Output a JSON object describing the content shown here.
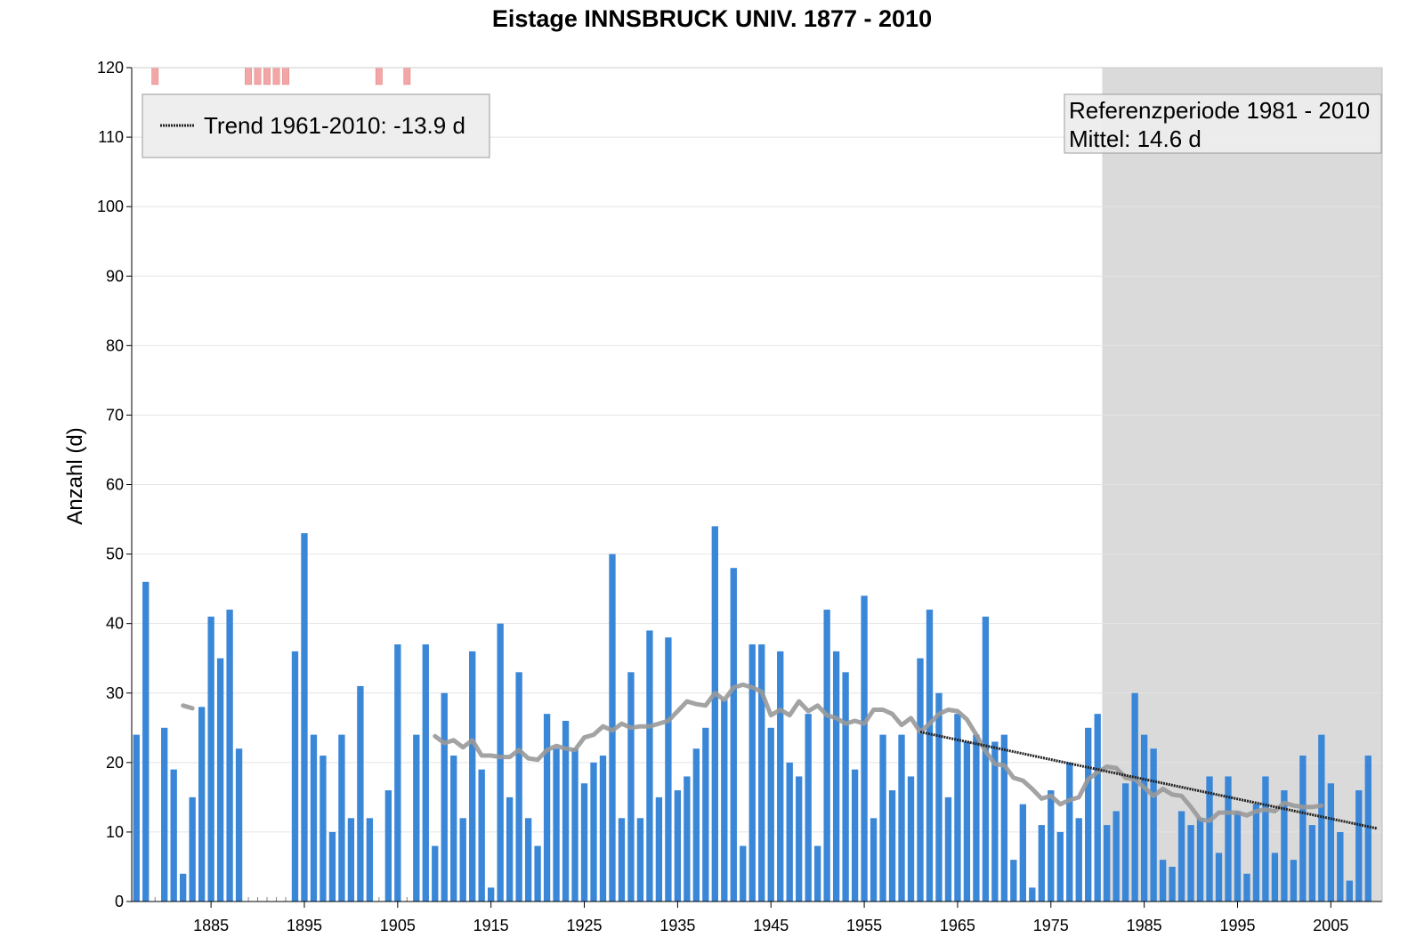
{
  "chart_data": {
    "type": "bar",
    "title": "Eistage INNSBRUCK UNIV. 1877 - 2010",
    "ylabel": "Anzahl (d)",
    "xlabel": "",
    "ylim": [
      0,
      120
    ],
    "xlim": [
      1876.5,
      2010.5
    ],
    "yticks": [
      "0",
      "10",
      "20",
      "30",
      "40",
      "50",
      "60",
      "70",
      "80",
      "90",
      "100",
      "110",
      "120"
    ],
    "xticks": [
      "1885",
      "1895",
      "1905",
      "1915",
      "1925",
      "1935",
      "1945",
      "1955",
      "1965",
      "1975",
      "1985",
      "1995",
      "2005"
    ],
    "grid": true,
    "bar_color": "#3a87d8",
    "bars": [
      [
        1877,
        24
      ],
      [
        1878,
        46
      ],
      [
        1880,
        25
      ],
      [
        1881,
        19
      ],
      [
        1882,
        4
      ],
      [
        1883,
        15
      ],
      [
        1884,
        28
      ],
      [
        1885,
        41
      ],
      [
        1886,
        35
      ],
      [
        1887,
        42
      ],
      [
        1888,
        22
      ],
      [
        1894,
        36
      ],
      [
        1895,
        53
      ],
      [
        1896,
        24
      ],
      [
        1897,
        21
      ],
      [
        1898,
        10
      ],
      [
        1899,
        24
      ],
      [
        1900,
        12
      ],
      [
        1901,
        31
      ],
      [
        1902,
        12
      ],
      [
        1904,
        16
      ],
      [
        1905,
        37
      ],
      [
        1907,
        24
      ],
      [
        1908,
        37
      ],
      [
        1909,
        8
      ],
      [
        1910,
        30
      ],
      [
        1911,
        21
      ],
      [
        1912,
        12
      ],
      [
        1913,
        36
      ],
      [
        1914,
        19
      ],
      [
        1915,
        2
      ],
      [
        1916,
        40
      ],
      [
        1917,
        15
      ],
      [
        1918,
        33
      ],
      [
        1919,
        12
      ],
      [
        1920,
        8
      ],
      [
        1921,
        27
      ],
      [
        1922,
        22
      ],
      [
        1923,
        26
      ],
      [
        1924,
        22
      ],
      [
        1925,
        17
      ],
      [
        1926,
        20
      ],
      [
        1927,
        21
      ],
      [
        1928,
        50
      ],
      [
        1929,
        12
      ],
      [
        1930,
        33
      ],
      [
        1931,
        12
      ],
      [
        1932,
        39
      ],
      [
        1933,
        15
      ],
      [
        1934,
        38
      ],
      [
        1935,
        16
      ],
      [
        1936,
        18
      ],
      [
        1937,
        22
      ],
      [
        1938,
        25
      ],
      [
        1939,
        54
      ],
      [
        1940,
        29
      ],
      [
        1941,
        48
      ],
      [
        1942,
        8
      ],
      [
        1943,
        37
      ],
      [
        1944,
        37
      ],
      [
        1945,
        25
      ],
      [
        1946,
        36
      ],
      [
        1947,
        20
      ],
      [
        1948,
        18
      ],
      [
        1949,
        27
      ],
      [
        1950,
        8
      ],
      [
        1951,
        42
      ],
      [
        1952,
        36
      ],
      [
        1953,
        33
      ],
      [
        1954,
        19
      ],
      [
        1955,
        44
      ],
      [
        1956,
        12
      ],
      [
        1957,
        24
      ],
      [
        1958,
        16
      ],
      [
        1959,
        24
      ],
      [
        1960,
        18
      ],
      [
        1961,
        35
      ],
      [
        1962,
        42
      ],
      [
        1963,
        30
      ],
      [
        1964,
        15
      ],
      [
        1965,
        27
      ],
      [
        1966,
        23
      ],
      [
        1967,
        24
      ],
      [
        1968,
        41
      ],
      [
        1969,
        23
      ],
      [
        1970,
        24
      ],
      [
        1971,
        6
      ],
      [
        1972,
        14
      ],
      [
        1973,
        2
      ],
      [
        1974,
        11
      ],
      [
        1975,
        16
      ],
      [
        1976,
        10
      ],
      [
        1977,
        20
      ],
      [
        1978,
        12
      ],
      [
        1979,
        25
      ],
      [
        1980,
        27
      ],
      [
        1981,
        11
      ],
      [
        1982,
        13
      ],
      [
        1983,
        17
      ],
      [
        1984,
        30
      ],
      [
        1985,
        24
      ],
      [
        1986,
        22
      ],
      [
        1987,
        6
      ],
      [
        1988,
        5
      ],
      [
        1989,
        13
      ],
      [
        1990,
        11
      ],
      [
        1991,
        12
      ],
      [
        1992,
        18
      ],
      [
        1993,
        7
      ],
      [
        1994,
        18
      ],
      [
        1995,
        13
      ],
      [
        1996,
        4
      ],
      [
        1997,
        14
      ],
      [
        1998,
        18
      ],
      [
        1999,
        7
      ],
      [
        2000,
        16
      ],
      [
        2001,
        6
      ],
      [
        2002,
        21
      ],
      [
        2003,
        11
      ],
      [
        2004,
        24
      ],
      [
        2005,
        17
      ],
      [
        2006,
        10
      ],
      [
        2007,
        3
      ],
      [
        2008,
        16
      ],
      [
        2009,
        21
      ]
    ],
    "missing_years": [
      1879,
      1889,
      1890,
      1891,
      1892,
      1893,
      1903,
      1906
    ],
    "missing_marker_color": "#f4a6a6",
    "smooth_line": {
      "color": "#999999",
      "points": [
        [
          1882,
          28.2
        ],
        [
          1883,
          27.8
        ],
        [
          1909,
          23.8
        ],
        [
          1910,
          22.8
        ],
        [
          1911,
          23.2
        ],
        [
          1912,
          22.2
        ],
        [
          1913,
          23.2
        ],
        [
          1914,
          21.0
        ],
        [
          1915,
          21.0
        ],
        [
          1916,
          20.8
        ],
        [
          1917,
          20.8
        ],
        [
          1918,
          21.8
        ],
        [
          1919,
          20.6
        ],
        [
          1920,
          20.4
        ],
        [
          1921,
          21.8
        ],
        [
          1922,
          22.4
        ],
        [
          1923,
          22.0
        ],
        [
          1924,
          21.8
        ],
        [
          1925,
          23.6
        ],
        [
          1926,
          24.0
        ],
        [
          1927,
          25.2
        ],
        [
          1928,
          24.6
        ],
        [
          1929,
          25.6
        ],
        [
          1930,
          25.0
        ],
        [
          1931,
          25.2
        ],
        [
          1932,
          25.2
        ],
        [
          1933,
          25.6
        ],
        [
          1934,
          26.0
        ],
        [
          1935,
          27.4
        ],
        [
          1936,
          28.8
        ],
        [
          1937,
          28.4
        ],
        [
          1938,
          28.2
        ],
        [
          1939,
          30.0
        ],
        [
          1940,
          29.0
        ],
        [
          1941,
          30.8
        ],
        [
          1942,
          31.2
        ],
        [
          1943,
          30.8
        ],
        [
          1944,
          30.2
        ],
        [
          1945,
          26.8
        ],
        [
          1946,
          27.6
        ],
        [
          1947,
          26.8
        ],
        [
          1948,
          28.8
        ],
        [
          1949,
          27.4
        ],
        [
          1950,
          28.2
        ],
        [
          1951,
          26.8
        ],
        [
          1952,
          26.4
        ],
        [
          1953,
          25.6
        ],
        [
          1954,
          26.0
        ],
        [
          1955,
          25.6
        ],
        [
          1956,
          27.6
        ],
        [
          1957,
          27.6
        ],
        [
          1958,
          27.0
        ],
        [
          1959,
          25.4
        ],
        [
          1960,
          26.4
        ],
        [
          1961,
          24.4
        ],
        [
          1962,
          25.6
        ],
        [
          1963,
          27.0
        ],
        [
          1964,
          27.6
        ],
        [
          1965,
          27.4
        ],
        [
          1966,
          26.2
        ],
        [
          1967,
          24.0
        ],
        [
          1968,
          21.6
        ],
        [
          1969,
          19.8
        ],
        [
          1970,
          19.6
        ],
        [
          1971,
          17.8
        ],
        [
          1972,
          17.4
        ],
        [
          1973,
          16.2
        ],
        [
          1974,
          14.8
        ],
        [
          1975,
          15.2
        ],
        [
          1976,
          14.0
        ],
        [
          1977,
          14.6
        ],
        [
          1978,
          15.0
        ],
        [
          1979,
          17.6
        ],
        [
          1980,
          18.6
        ],
        [
          1981,
          19.4
        ],
        [
          1982,
          19.2
        ],
        [
          1983,
          17.8
        ],
        [
          1984,
          17.6
        ],
        [
          1985,
          16.4
        ],
        [
          1986,
          15.2
        ],
        [
          1987,
          16.2
        ],
        [
          1988,
          15.4
        ],
        [
          1989,
          15.2
        ],
        [
          1990,
          13.6
        ],
        [
          1991,
          11.8
        ],
        [
          1992,
          11.6
        ],
        [
          1993,
          12.8
        ],
        [
          1994,
          12.8
        ],
        [
          1995,
          12.8
        ],
        [
          1996,
          12.4
        ],
        [
          1997,
          13.0
        ],
        [
          1998,
          13.2
        ],
        [
          1999,
          13.0
        ],
        [
          2000,
          14.2
        ],
        [
          2001,
          13.8
        ],
        [
          2002,
          13.6
        ],
        [
          2003,
          13.6
        ],
        [
          2004,
          13.8
        ]
      ]
    },
    "trend": {
      "label": "Trend 1961-2010: -13.9 d",
      "from": [
        1961,
        24.4
      ],
      "to": [
        2010,
        10.5
      ]
    },
    "reference_period": {
      "label_line1": "Referenzperiode 1981 - 2010",
      "label_line2": "Mittel: 14.6 d",
      "from": 1980.5,
      "to": 2010.5,
      "shade_color": "#dadada"
    },
    "legend": "top-left"
  }
}
